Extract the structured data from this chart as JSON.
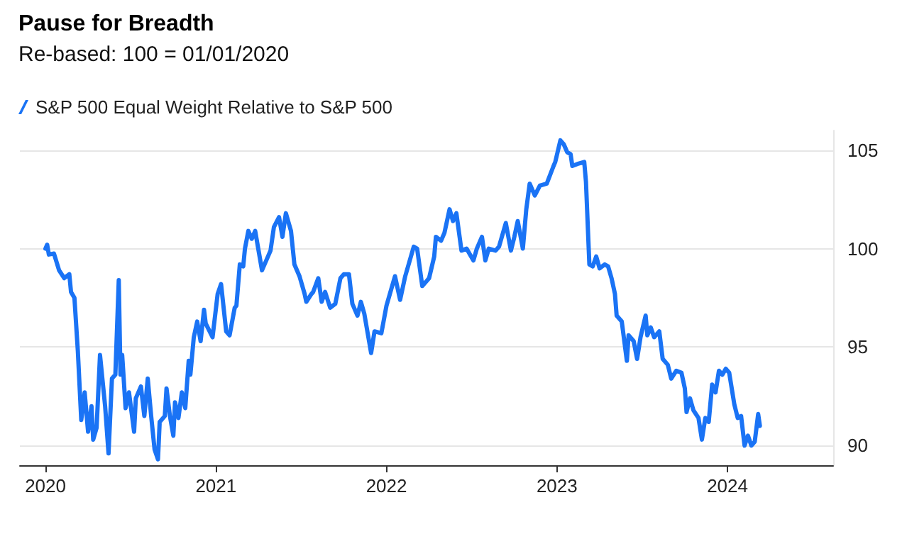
{
  "chart_data": {
    "type": "line",
    "title": "Pause for Breadth",
    "subtitle": "Re-based: 100 = 01/01/2020",
    "series": [
      {
        "name": "S&P 500 Equal Weight Relative to S&P 500",
        "color": "#1a73f5",
        "x": [
          2020.0,
          2020.01,
          2020.02,
          2020.05,
          2020.08,
          2020.11,
          2020.14,
          2020.15,
          2020.17,
          2020.19,
          2020.21,
          2020.23,
          2020.25,
          2020.27,
          2020.28,
          2020.3,
          2020.32,
          2020.35,
          2020.37,
          2020.39,
          2020.41,
          2020.43,
          2020.44,
          2020.45,
          2020.47,
          2020.49,
          2020.52,
          2020.53,
          2020.56,
          2020.58,
          2020.6,
          2020.62,
          2020.64,
          2020.66,
          2020.67,
          2020.7,
          2020.71,
          2020.73,
          2020.75,
          2020.76,
          2020.78,
          2020.8,
          2020.82,
          2020.84,
          2020.85,
          2020.87,
          2020.89,
          2020.91,
          2020.93,
          2020.94,
          2020.98,
          2021.01,
          2021.03,
          2021.06,
          2021.08,
          2021.11,
          2021.12,
          2021.14,
          2021.16,
          2021.17,
          2021.19,
          2021.21,
          2021.23,
          2021.25,
          2021.27,
          2021.32,
          2021.34,
          2021.37,
          2021.39,
          2021.41,
          2021.44,
          2021.46,
          2021.49,
          2021.52,
          2021.53,
          2021.56,
          2021.57,
          2021.6,
          2021.62,
          2021.64,
          2021.67,
          2021.7,
          2021.73,
          2021.75,
          2021.78,
          2021.8,
          2021.83,
          2021.85,
          2021.87,
          2021.89,
          2021.91,
          2021.93,
          2021.97,
          2022.0,
          2022.03,
          2022.05,
          2022.08,
          2022.11,
          2022.14,
          2022.16,
          2022.18,
          2022.21,
          2022.25,
          2022.28,
          2022.29,
          2022.32,
          2022.34,
          2022.37,
          2022.39,
          2022.41,
          2022.44,
          2022.47,
          2022.49,
          2022.51,
          2022.53,
          2022.56,
          2022.58,
          2022.6,
          2022.64,
          2022.66,
          2022.7,
          2022.73,
          2022.75,
          2022.77,
          2022.8,
          2022.82,
          2022.84,
          2022.87,
          2022.9,
          2022.94,
          2022.98,
          2022.99,
          2023.02,
          2023.04,
          2023.06,
          2023.08,
          2023.09,
          2023.12,
          2023.16,
          2023.17,
          2023.19,
          2023.21,
          2023.23,
          2023.25,
          2023.28,
          2023.3,
          2023.32,
          2023.34,
          2023.35,
          2023.38,
          2023.41,
          2023.42,
          2023.45,
          2023.47,
          2023.49,
          2023.52,
          2023.53,
          2023.55,
          2023.57,
          2023.6,
          2023.62,
          2023.65,
          2023.67,
          2023.7,
          2023.73,
          2023.75,
          2023.76,
          2023.78,
          2023.8,
          2023.83,
          2023.85,
          2023.87,
          2023.89,
          2023.91,
          2023.93,
          2023.95,
          2023.97,
          2023.99,
          2024.01,
          2024.04,
          2024.06,
          2024.08,
          2024.1,
          2024.12,
          2024.14,
          2024.16,
          2024.18,
          2024.19
        ],
        "values": [
          100.0,
          100.2,
          99.7,
          99.75,
          98.9,
          98.5,
          98.7,
          97.8,
          97.5,
          94.8,
          91.3,
          92.7,
          90.7,
          92.0,
          90.3,
          90.9,
          94.6,
          92.0,
          89.6,
          93.4,
          93.6,
          98.4,
          93.6,
          94.6,
          91.9,
          92.7,
          90.7,
          92.4,
          93.0,
          91.5,
          93.4,
          91.5,
          89.8,
          89.3,
          91.2,
          91.5,
          92.9,
          91.5,
          90.5,
          92.2,
          91.4,
          92.7,
          91.9,
          94.3,
          93.6,
          95.5,
          96.3,
          95.3,
          96.9,
          96.2,
          95.5,
          97.7,
          98.2,
          95.8,
          95.6,
          97.0,
          97.1,
          99.2,
          99.1,
          100.0,
          100.9,
          100.5,
          100.9,
          99.9,
          98.9,
          99.9,
          101.1,
          101.6,
          100.6,
          101.8,
          100.9,
          99.2,
          98.6,
          97.7,
          97.3,
          97.7,
          97.8,
          98.5,
          97.3,
          97.8,
          97.0,
          97.2,
          98.5,
          98.7,
          98.7,
          97.2,
          96.6,
          97.3,
          96.7,
          95.7,
          94.7,
          95.8,
          95.7,
          97.1,
          98.0,
          98.6,
          97.4,
          98.6,
          99.5,
          100.1,
          100.0,
          98.1,
          98.5,
          99.6,
          100.6,
          100.4,
          100.8,
          102.0,
          101.4,
          101.8,
          99.9,
          100.0,
          99.7,
          99.4,
          100.0,
          100.6,
          99.4,
          100.0,
          99.9,
          100.1,
          101.3,
          99.9,
          100.6,
          101.4,
          100.0,
          102.0,
          103.3,
          102.7,
          103.2,
          103.3,
          104.2,
          104.4,
          105.5,
          105.3,
          104.9,
          104.8,
          104.2,
          104.3,
          104.4,
          103.4,
          99.2,
          99.1,
          99.6,
          99.0,
          99.2,
          99.1,
          98.5,
          97.7,
          96.6,
          96.3,
          94.3,
          95.6,
          95.3,
          94.4,
          95.5,
          96.6,
          95.6,
          96.0,
          95.5,
          95.8,
          94.4,
          94.1,
          93.4,
          93.8,
          93.7,
          92.9,
          91.7,
          92.4,
          91.8,
          91.4,
          90.3,
          91.4,
          91.2,
          93.1,
          92.7,
          93.8,
          93.6,
          93.9,
          93.7,
          92.1,
          91.4,
          91.5,
          90.0,
          90.5,
          90.0,
          90.2,
          91.6,
          91.0
        ]
      }
    ],
    "xlim": [
      2019.85,
      2024.62
    ],
    "xticks": [
      2020,
      2021,
      2022,
      2023,
      2024
    ],
    "ylim": [
      89,
      106
    ],
    "yticks": [
      90,
      95,
      100,
      105
    ],
    "grid": "y",
    "legend": "top left",
    "marker": "none",
    "line_style": "solid"
  }
}
